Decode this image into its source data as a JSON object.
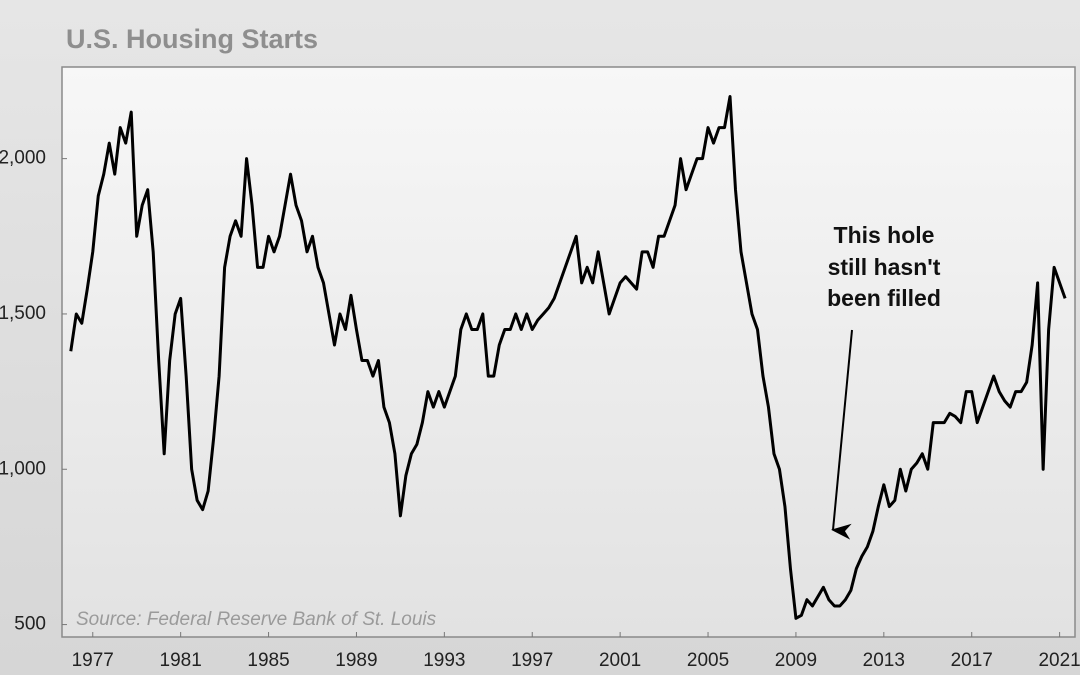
{
  "chart_data": {
    "type": "line",
    "title": "U.S. Housing Starts",
    "source": "Source: Federal Reserve Bank of St. Louis",
    "annotation": [
      "This hole",
      "still hasn't",
      "been filled"
    ],
    "color": "#000000",
    "x": [
      1976,
      1976.25,
      1976.5,
      1976.75,
      1977,
      1977.25,
      1977.5,
      1977.75,
      1978,
      1978.25,
      1978.5,
      1978.75,
      1979,
      1979.25,
      1979.5,
      1979.75,
      1980,
      1980.25,
      1980.5,
      1980.75,
      1981,
      1981.25,
      1981.5,
      1981.75,
      1982,
      1982.25,
      1982.5,
      1982.75,
      1983,
      1983.25,
      1983.5,
      1983.75,
      1984,
      1984.25,
      1984.5,
      1984.75,
      1985,
      1985.25,
      1985.5,
      1985.75,
      1986,
      1986.25,
      1986.5,
      1986.75,
      1987,
      1987.25,
      1987.5,
      1987.75,
      1988,
      1988.25,
      1988.5,
      1988.75,
      1989,
      1989.25,
      1989.5,
      1989.75,
      1990,
      1990.25,
      1990.5,
      1990.75,
      1991,
      1991.25,
      1991.5,
      1991.75,
      1992,
      1992.25,
      1992.5,
      1992.75,
      1993,
      1993.25,
      1993.5,
      1993.75,
      1994,
      1994.25,
      1994.5,
      1994.75,
      1995,
      1995.25,
      1995.5,
      1995.75,
      1996,
      1996.25,
      1996.5,
      1996.75,
      1997,
      1997.25,
      1997.5,
      1997.75,
      1998,
      1998.25,
      1998.5,
      1998.75,
      1999,
      1999.25,
      1999.5,
      1999.75,
      2000,
      2000.25,
      2000.5,
      2000.75,
      2001,
      2001.25,
      2001.5,
      2001.75,
      2002,
      2002.25,
      2002.5,
      2002.75,
      2003,
      2003.25,
      2003.5,
      2003.75,
      2004,
      2004.25,
      2004.5,
      2004.75,
      2005,
      2005.25,
      2005.5,
      2005.75,
      2006,
      2006.25,
      2006.5,
      2006.75,
      2007,
      2007.25,
      2007.5,
      2007.75,
      2008,
      2008.25,
      2008.5,
      2008.75,
      2009,
      2009.25,
      2009.5,
      2009.75,
      2010,
      2010.25,
      2010.5,
      2010.75,
      2011,
      2011.25,
      2011.5,
      2011.75,
      2012,
      2012.25,
      2012.5,
      2012.75,
      2013,
      2013.25,
      2013.5,
      2013.75,
      2014,
      2014.25,
      2014.5,
      2014.75,
      2015,
      2015.25,
      2015.5,
      2015.75,
      2016,
      2016.25,
      2016.5,
      2016.75,
      2017,
      2017.25,
      2017.5,
      2017.75,
      2018,
      2018.25,
      2018.5,
      2018.75,
      2019,
      2019.25,
      2019.5,
      2019.75,
      2020,
      2020.25,
      2020.5,
      2020.75,
      2021,
      2021.25
    ],
    "values": [
      1380,
      1500,
      1470,
      1580,
      1700,
      1880,
      1950,
      2050,
      1950,
      2100,
      2050,
      2150,
      1750,
      1850,
      1900,
      1700,
      1350,
      1050,
      1350,
      1500,
      1550,
      1300,
      1000,
      900,
      870,
      930,
      1100,
      1300,
      1650,
      1750,
      1800,
      1750,
      2000,
      1850,
      1650,
      1650,
      1750,
      1700,
      1750,
      1850,
      1950,
      1850,
      1800,
      1700,
      1750,
      1650,
      1600,
      1500,
      1400,
      1500,
      1450,
      1560,
      1450,
      1350,
      1350,
      1300,
      1350,
      1200,
      1150,
      1050,
      850,
      980,
      1050,
      1080,
      1150,
      1250,
      1200,
      1250,
      1200,
      1250,
      1300,
      1450,
      1500,
      1450,
      1450,
      1500,
      1300,
      1300,
      1400,
      1450,
      1450,
      1500,
      1450,
      1500,
      1450,
      1480,
      1500,
      1520,
      1550,
      1600,
      1650,
      1700,
      1750,
      1600,
      1650,
      1600,
      1700,
      1600,
      1500,
      1550,
      1600,
      1620,
      1600,
      1580,
      1700,
      1700,
      1650,
      1750,
      1750,
      1800,
      1850,
      2000,
      1900,
      1950,
      2000,
      2000,
      2100,
      2050,
      2100,
      2100,
      2200,
      1900,
      1700,
      1600,
      1500,
      1450,
      1300,
      1200,
      1050,
      1000,
      880,
      680,
      520,
      530,
      580,
      560,
      590,
      620,
      580,
      560,
      560,
      580,
      610,
      680,
      720,
      750,
      800,
      880,
      950,
      880,
      900,
      1000,
      930,
      1000,
      1020,
      1050,
      1000,
      1150,
      1150,
      1150,
      1180,
      1170,
      1150,
      1250,
      1250,
      1150,
      1200,
      1250,
      1300,
      1250,
      1220,
      1200,
      1250,
      1250,
      1280,
      1400,
      1600,
      1000,
      1450,
      1650,
      1600,
      1550
    ],
    "xlim": [
      1975.6,
      2021.7
    ],
    "xticks": [
      1977,
      1981,
      1985,
      1989,
      1993,
      1997,
      2001,
      2005,
      2009,
      2013,
      2017,
      2021
    ],
    "ylim": [
      460,
      2295
    ],
    "yticks": [
      {
        "value": 500,
        "label": "500"
      },
      {
        "value": 1000,
        "label": "1,000"
      },
      {
        "value": 1500,
        "label": "1,500"
      },
      {
        "value": 2000,
        "label": "2,000"
      }
    ]
  }
}
